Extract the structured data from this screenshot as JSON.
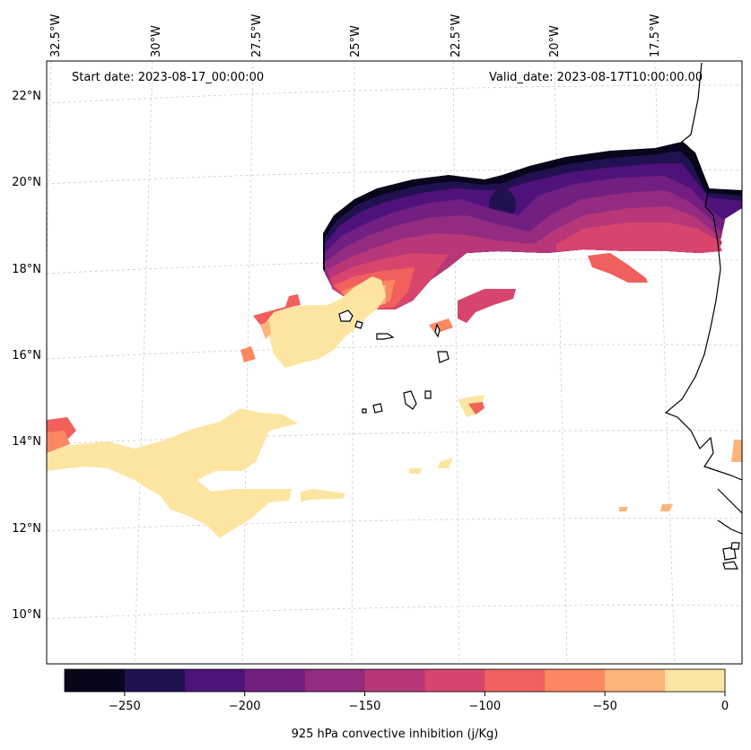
{
  "annotations": {
    "start_date": "Start date: 2023-08-17_00:00:00",
    "valid_date": "Valid_date: 2023-08-17T10:00:00.00"
  },
  "lon_labels": [
    "32.5°W",
    "30°W",
    "27.5°W",
    "25°W",
    "22.5°W",
    "20°W",
    "17.5°W"
  ],
  "lat_labels": [
    "22°N",
    "20°N",
    "18°N",
    "16°N",
    "14°N",
    "12°N",
    "10°N"
  ],
  "colorbar": {
    "label": "925 hPa convective inhibition (j/Kg)",
    "ticks": [
      "−250",
      "−200",
      "−150",
      "−100",
      "−50",
      "0"
    ],
    "levels": [
      -275,
      -250,
      -225,
      -200,
      -175,
      -150,
      -125,
      -100,
      -75,
      -50,
      -25,
      0
    ],
    "colors": [
      "#07061b",
      "#221151",
      "#4f127b",
      "#711f81",
      "#932b80",
      "#b73779",
      "#d8456c",
      "#f1605d",
      "#fb8861",
      "#fdb47b",
      "#fde5a1"
    ]
  },
  "field": {
    "units": "j/Kg",
    "colormap": "magma"
  }
}
